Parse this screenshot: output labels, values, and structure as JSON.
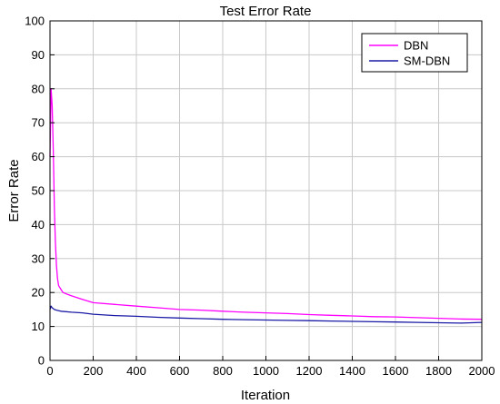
{
  "chart_data": {
    "type": "line",
    "title": "Test Error Rate",
    "xlabel": "Iteration",
    "ylabel": "Error Rate",
    "xlim": [
      0,
      2000
    ],
    "ylim": [
      0,
      100
    ],
    "xticks": [
      0,
      200,
      400,
      600,
      800,
      1000,
      1200,
      1400,
      1600,
      1800,
      2000
    ],
    "yticks": [
      0,
      10,
      20,
      30,
      40,
      50,
      60,
      70,
      80,
      90,
      100
    ],
    "grid": true,
    "legend_position": "top-right",
    "series": [
      {
        "name": "DBN",
        "color": "#ff00ff",
        "x": [
          0,
          5,
          10,
          15,
          20,
          25,
          30,
          35,
          40,
          50,
          60,
          80,
          100,
          150,
          200,
          300,
          400,
          500,
          600,
          700,
          800,
          900,
          1000,
          1100,
          1200,
          1300,
          1400,
          1500,
          1600,
          1700,
          1800,
          1900,
          2000
        ],
        "values": [
          60,
          80,
          75,
          62,
          45,
          35,
          28,
          24,
          22,
          21,
          20,
          19.5,
          19,
          18,
          17,
          16.5,
          16,
          15.5,
          15,
          14.8,
          14.5,
          14.2,
          14,
          13.8,
          13.5,
          13.3,
          13.1,
          12.9,
          12.8,
          12.6,
          12.4,
          12.2,
          12.1
        ]
      },
      {
        "name": "SM-DBN",
        "color": "#1a1aa6",
        "x": [
          0,
          5,
          10,
          20,
          30,
          50,
          100,
          150,
          200,
          300,
          400,
          500,
          600,
          700,
          800,
          900,
          1000,
          1100,
          1200,
          1300,
          1400,
          1500,
          1600,
          1700,
          1800,
          1900,
          2000
        ],
        "values": [
          15,
          16,
          15.5,
          15,
          14.8,
          14.5,
          14.2,
          14,
          13.6,
          13.2,
          13,
          12.7,
          12.5,
          12.3,
          12.1,
          12,
          11.9,
          11.8,
          11.7,
          11.6,
          11.5,
          11.4,
          11.3,
          11.2,
          11.1,
          11,
          11.2
        ]
      }
    ]
  }
}
